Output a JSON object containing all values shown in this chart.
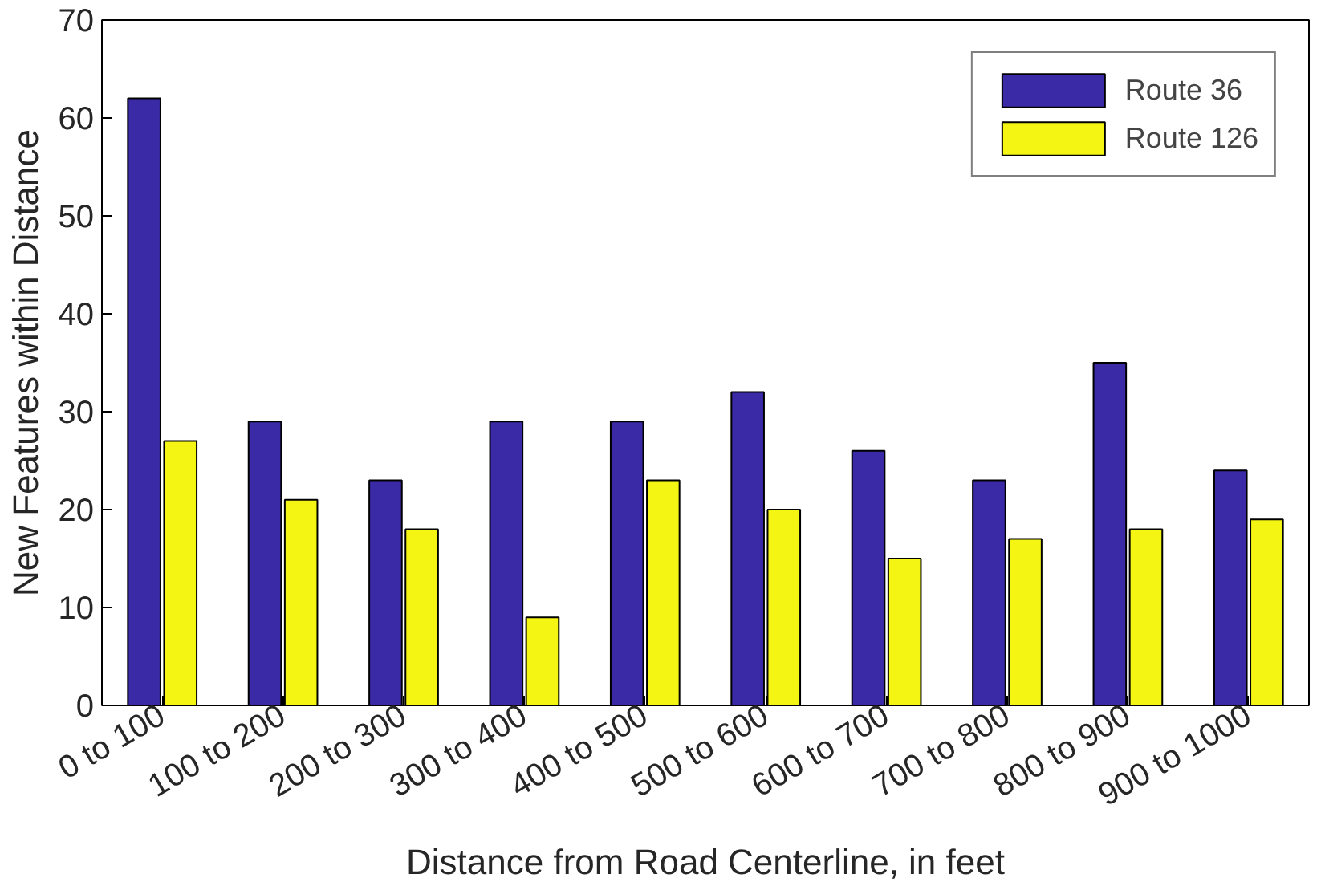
{
  "chart_data": {
    "type": "bar",
    "xlabel": "Distance from Road Centerline, in feet",
    "ylabel": "New Features within Distance",
    "categories": [
      "0 to 100",
      "100 to 200",
      "200 to 300",
      "300 to 400",
      "400 to 500",
      "500 to 600",
      "600 to 700",
      "700 to 800",
      "800 to 900",
      "900 to 1000"
    ],
    "series": [
      {
        "name": "Route 36",
        "color": "#3a2aa6",
        "values": [
          62,
          29,
          23,
          29,
          29,
          32,
          26,
          23,
          35,
          24
        ]
      },
      {
        "name": "Route 126",
        "color": "#f5f514",
        "values": [
          27,
          21,
          18,
          9,
          23,
          20,
          15,
          17,
          18,
          19
        ]
      }
    ],
    "ylim": [
      0,
      70
    ],
    "yticks": [
      0,
      10,
      20,
      30,
      40,
      50,
      60,
      70
    ],
    "grid": false,
    "legend": "top right"
  }
}
